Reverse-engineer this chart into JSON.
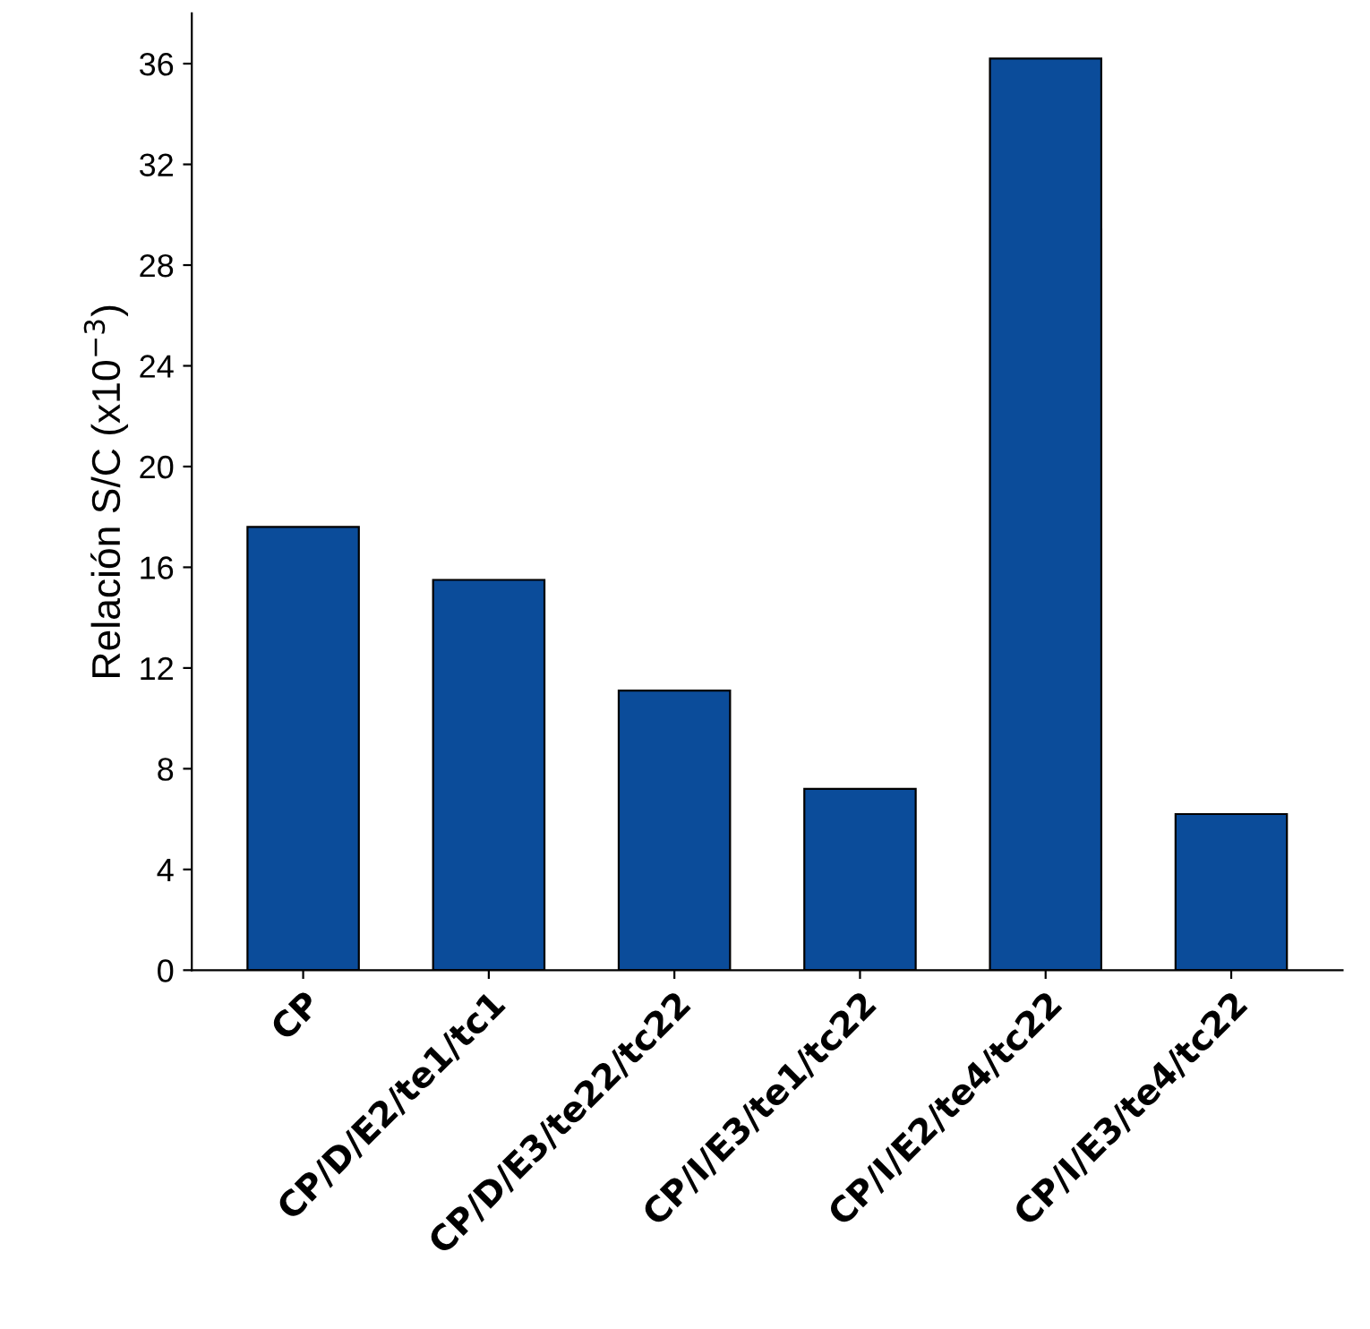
{
  "chart_data": {
    "type": "bar",
    "ylabel": "Relación S/C (x10$^{−3}$)",
    "categories": [
      "CP",
      "CP/D/E2/te1/tc1",
      "CP/D/E3/te22/tc22",
      "CP/I/E3/te1/tc22",
      "CP/I/E2/te4/tc22",
      "CP/I/E3/te4/tc22"
    ],
    "values": [
      17.6,
      15.5,
      11.1,
      7.2,
      36.2,
      6.2
    ],
    "color": "#0b4c9a",
    "ylim": [
      0,
      38
    ],
    "yticks": [
      0,
      4,
      8,
      12,
      16,
      20,
      24,
      28,
      32,
      36
    ],
    "grid": false
  }
}
